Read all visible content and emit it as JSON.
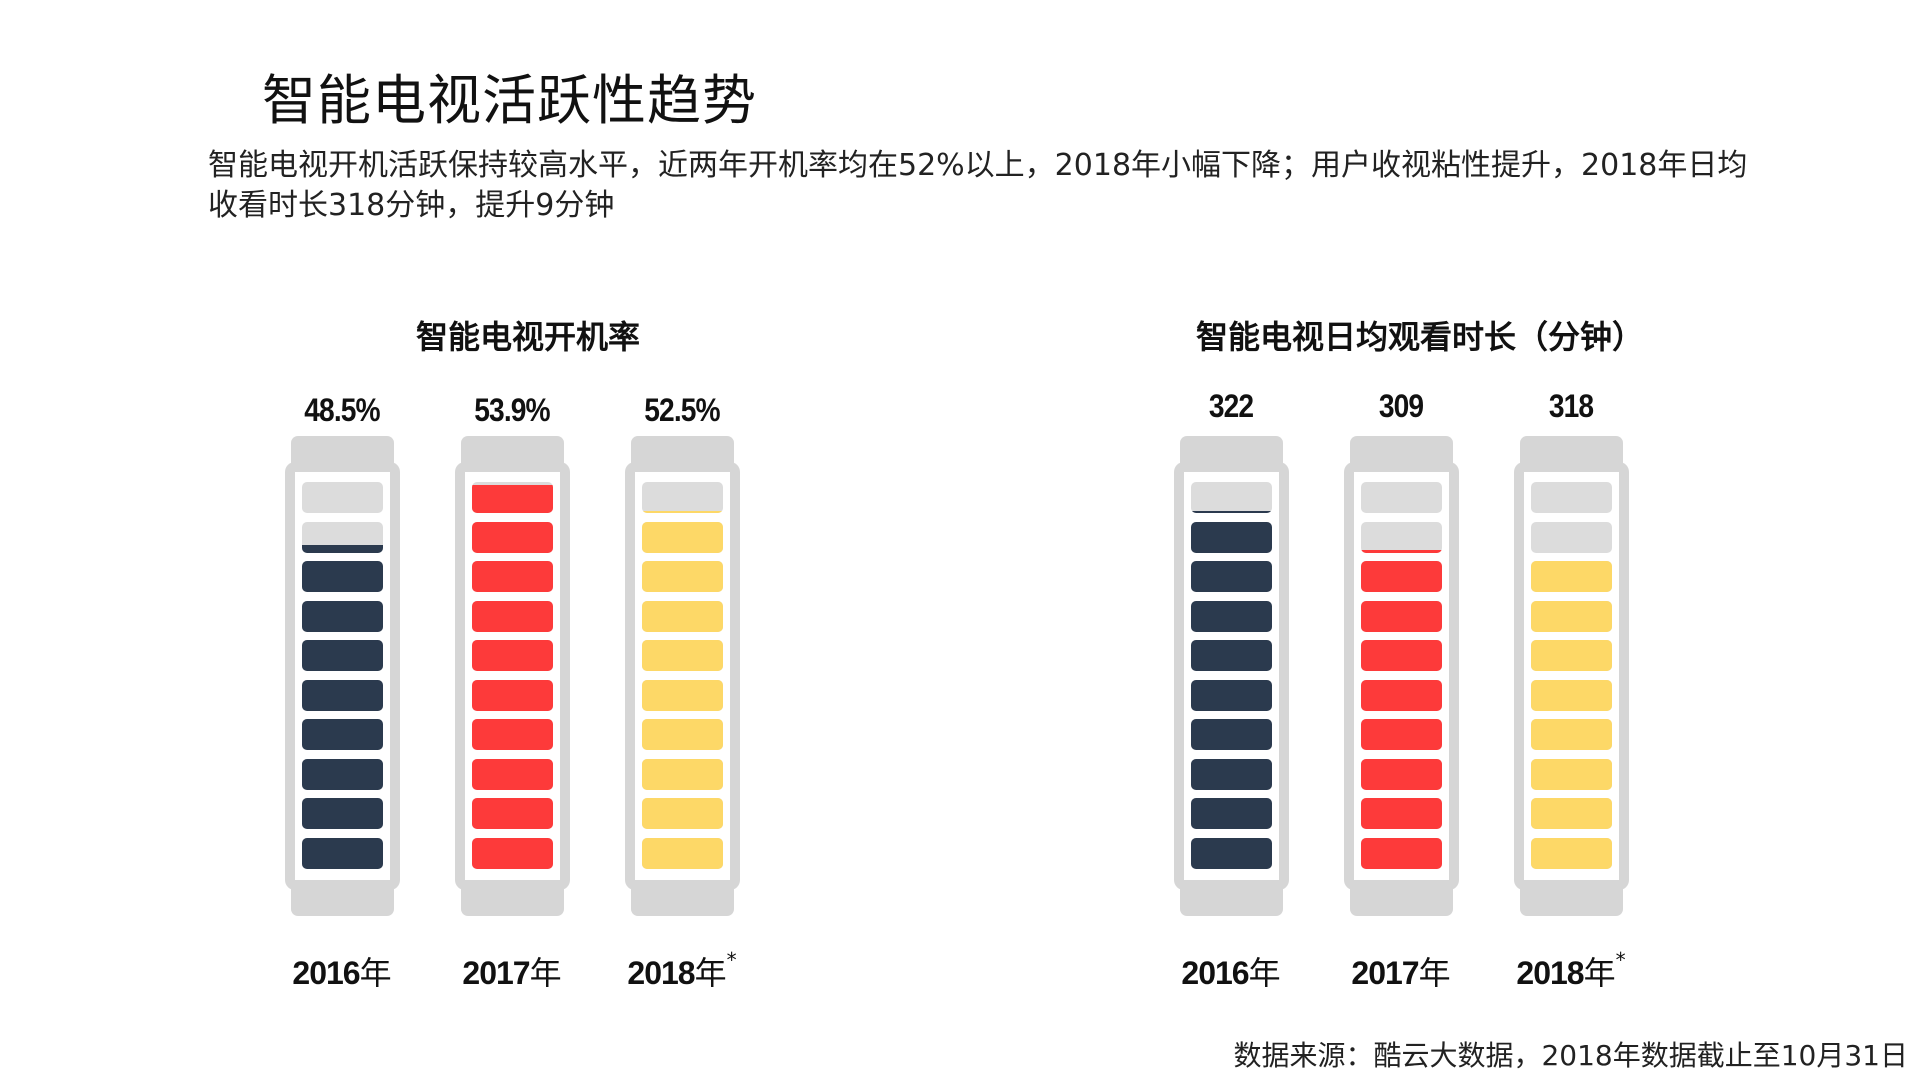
{
  "title": "智能电视活跃性趋势",
  "subtitle": "智能电视开机活跃保持较高水平，近两年开机率均在52%以上，2018年小幅下降；用户收视粘性提升，2018年日均收看时长318分钟，提升9分钟",
  "source": "数据来源：酷云大数据，2018年数据截止至10月31日",
  "colors": {
    "navy": "#2b3a4e",
    "red": "#fd3a3a",
    "yellow": "#fdd867",
    "empty": "#dcdcdc",
    "frame": "#d6d6d6"
  },
  "chart_data": [
    {
      "type": "bar",
      "title": "智能电视开机率",
      "unit": "%",
      "categories": [
        "2016年",
        "2017年",
        "2018年*"
      ],
      "years": [
        "2016",
        "2017",
        "2018"
      ],
      "year_suffix": [
        "年",
        "年",
        "年"
      ],
      "year_star": [
        "",
        "",
        "*"
      ],
      "values": [
        48.5,
        53.9,
        52.5
      ],
      "value_labels": [
        "48.5%",
        "53.9%",
        "52.5%"
      ],
      "fill_fractions": [
        0.825,
        0.99,
        0.905
      ],
      "bar_colors": [
        "#2b3a4e",
        "#fd3a3a",
        "#fdd867"
      ]
    },
    {
      "type": "bar",
      "title": "智能电视日均观看时长（分钟）",
      "unit": "分钟",
      "categories": [
        "2016年",
        "2017年",
        "2018年*"
      ],
      "years": [
        "2016",
        "2017",
        "2018"
      ],
      "year_suffix": [
        "年",
        "年",
        "年"
      ],
      "year_star": [
        "",
        "",
        "*"
      ],
      "values": [
        322,
        309,
        318
      ],
      "value_labels": [
        "322",
        "309",
        "318"
      ],
      "fill_fractions": [
        0.905,
        0.81,
        0.8
      ],
      "bar_colors": [
        "#2b3a4e",
        "#fd3a3a",
        "#fdd867"
      ]
    }
  ]
}
